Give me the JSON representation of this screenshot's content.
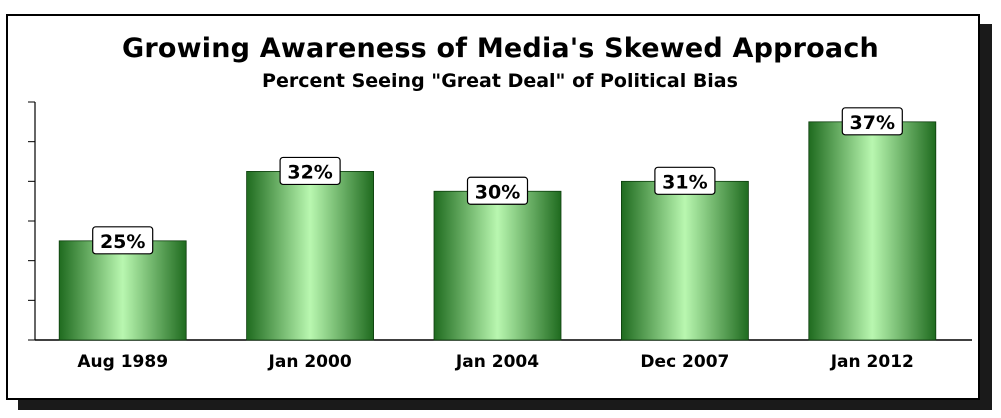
{
  "chart_data": {
    "type": "bar",
    "title": "Growing Awareness of Media's Skewed Approach",
    "subtitle": "Percent Seeing \"Great Deal\" of Political Bias",
    "categories": [
      "Aug 1989",
      "Jan 2000",
      "Jan 2004",
      "Dec 2007",
      "Jan 2012"
    ],
    "values": [
      25,
      32,
      30,
      31,
      37
    ],
    "data_labels": [
      "25%",
      "32%",
      "30%",
      "31%",
      "37%"
    ],
    "ylim": [
      15,
      39
    ],
    "grid": false,
    "legend": "none"
  },
  "colors": {
    "bar_dark": "#1f6b1f",
    "bar_light": "#b9f7b0",
    "axis": "#000000",
    "frame_shadow": "#1a1a1a"
  }
}
